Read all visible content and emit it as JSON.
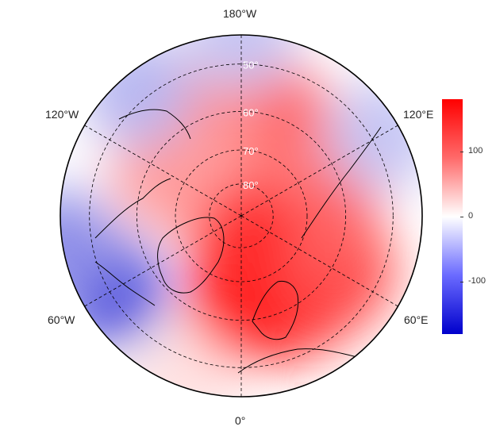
{
  "map": {
    "projection": "north-polar-stereographic",
    "longitude_labels": {
      "top": "180°W",
      "bottom": "0°",
      "upper_left": "120°W",
      "upper_right": "120°E",
      "lower_left": "60°W",
      "lower_right": "60°E"
    },
    "latitude_labels": [
      "50°",
      "60°",
      "70°",
      "80°"
    ],
    "graticule": "dashed",
    "colors": {
      "high": "#ff0000",
      "mid": "#ffffff",
      "low": "#0000cc"
    },
    "anomaly_regions": [
      {
        "lon": 0,
        "lat": 62,
        "value": 170
      },
      {
        "lon": 20,
        "lat": 62,
        "value": 175
      },
      {
        "lon": 40,
        "lat": 60,
        "value": 150
      },
      {
        "lon": 60,
        "lat": 58,
        "value": 130
      },
      {
        "lon": 90,
        "lat": 65,
        "value": 110
      },
      {
        "lon": 150,
        "lat": 62,
        "value": 90
      },
      {
        "lon": 170,
        "lat": 58,
        "value": 110
      },
      {
        "lon": -160,
        "lat": 60,
        "value": 80
      },
      {
        "lon": 0,
        "lat": 85,
        "value": 150
      },
      {
        "lon": -120,
        "lat": 65,
        "value": 70
      },
      {
        "lon": -60,
        "lat": 50,
        "value": -120
      },
      {
        "lon": -80,
        "lat": 45,
        "value": -80
      },
      {
        "lon": 180,
        "lat": 45,
        "value": -40
      },
      {
        "lon": -140,
        "lat": 48,
        "value": -50
      },
      {
        "lon": 120,
        "lat": 48,
        "value": -40
      },
      {
        "lon": -20,
        "lat": 45,
        "value": 20
      }
    ]
  },
  "colorbar": {
    "ticks": [
      "100",
      "0",
      "-100"
    ],
    "tick_values": [
      100,
      0,
      -100
    ],
    "range": [
      -180,
      180
    ]
  }
}
